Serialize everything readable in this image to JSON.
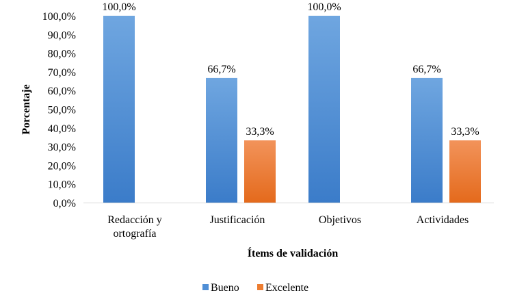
{
  "chart_data": {
    "type": "bar",
    "categories": [
      [
        "Redacción y",
        "ortografía"
      ],
      [
        "Justificación"
      ],
      [
        "Objetivos"
      ],
      [
        "Actividades"
      ]
    ],
    "series": [
      {
        "name": "Bueno",
        "values": [
          100.0,
          66.7,
          100.0,
          66.7
        ],
        "labels": [
          "100,0%",
          "66,7%",
          "100,0%",
          "66,7%"
        ],
        "color": "#4f8fd6"
      },
      {
        "name": "Excelente",
        "values": [
          null,
          33.3,
          null,
          33.3
        ],
        "labels": [
          null,
          "33,3%",
          null,
          "33,3%"
        ],
        "color": "#ed7d31"
      }
    ],
    "yticks": [
      "0,0%",
      "10,0%",
      "20,0%",
      "30,0%",
      "40,0%",
      "50,0%",
      "60,0%",
      "70,0%",
      "80,0%",
      "90,0%",
      "100,0%"
    ],
    "ylim": [
      0,
      100
    ],
    "ylabel": "Porcentaje",
    "xlabel": "Ítems de validación",
    "grid": false,
    "legend": "bottom-center"
  }
}
